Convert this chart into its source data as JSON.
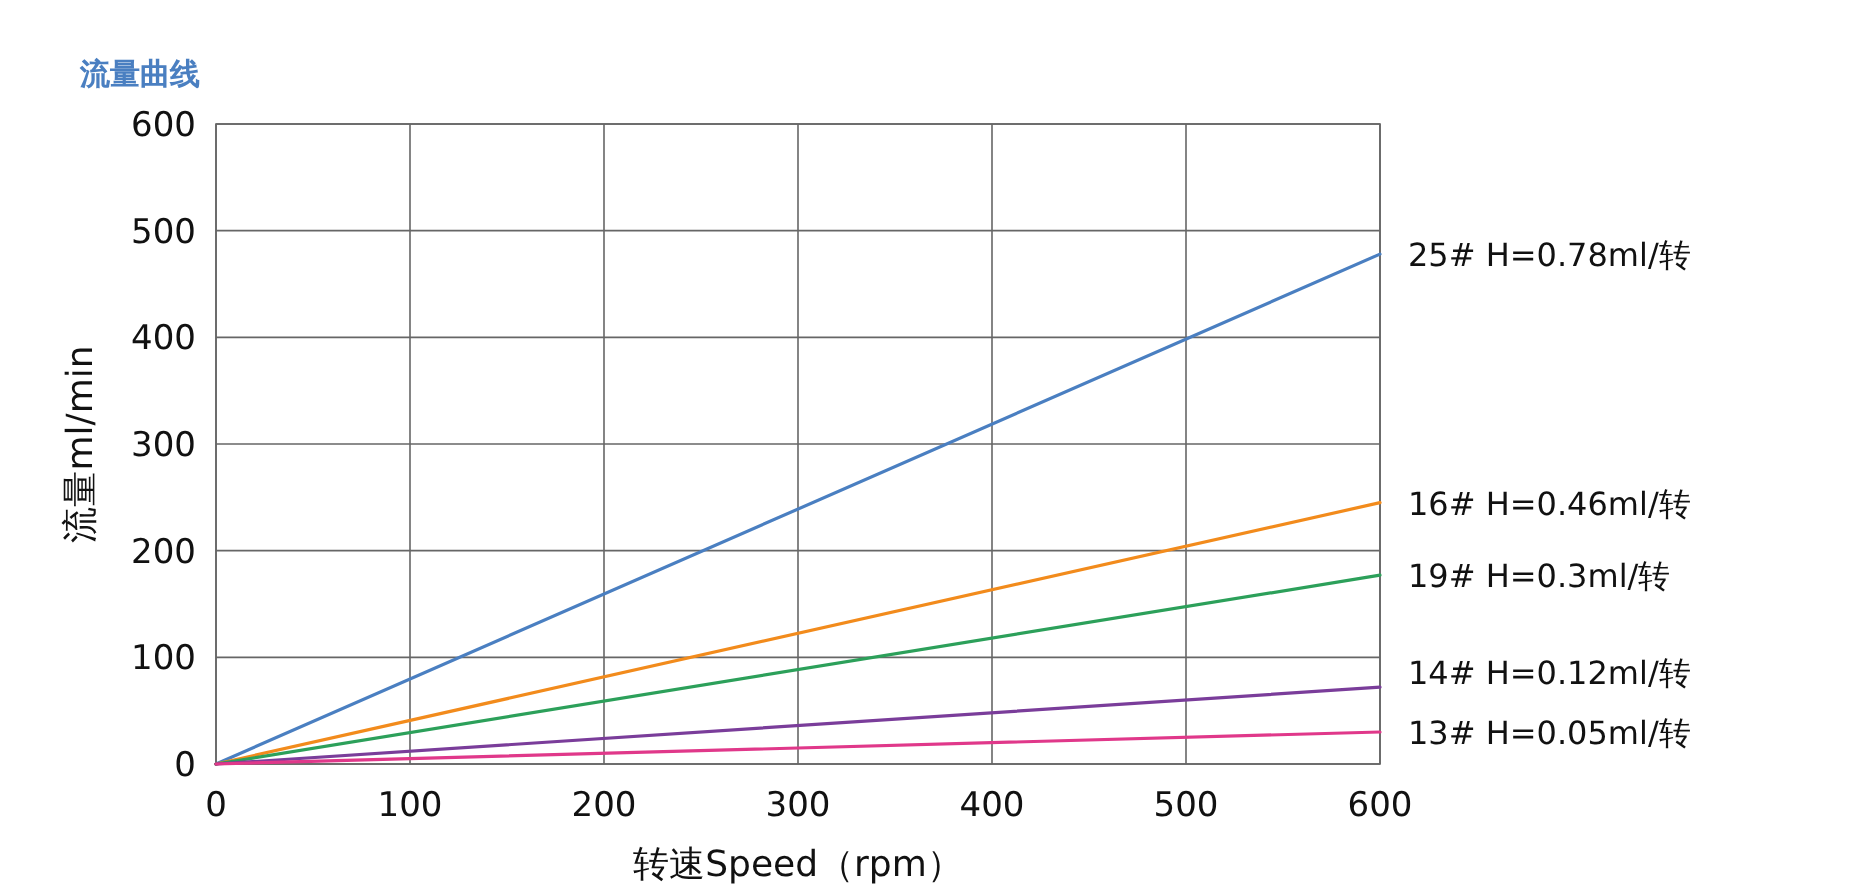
{
  "chart_data": {
    "type": "line",
    "title": "流量曲线",
    "xlabel": "转速Speed（rpm）",
    "ylabel": "流量ml/min",
    "x": [
      0,
      600
    ],
    "xlim": [
      0,
      600
    ],
    "ylim": [
      0,
      600
    ],
    "xticks": [
      0,
      100,
      200,
      300,
      400,
      500,
      600
    ],
    "yticks": [
      0,
      100,
      200,
      300,
      400,
      500,
      600
    ],
    "grid": true,
    "series": [
      {
        "name": "25# H=0.78ml/转",
        "color": "#4a7fc1",
        "values": [
          0,
          478
        ]
      },
      {
        "name": "16# H=0.46ml/转",
        "color": "#f28b1c",
        "values": [
          0,
          245
        ]
      },
      {
        "name": "19# H=0.3ml/转",
        "color": "#2ca05a",
        "values": [
          0,
          177
        ]
      },
      {
        "name": "14# H=0.12ml/转",
        "color": "#7a3d9a",
        "values": [
          0,
          72
        ]
      },
      {
        "name": "13# H=0.05ml/转",
        "color": "#e0388a",
        "values": [
          0,
          30
        ]
      }
    ]
  }
}
